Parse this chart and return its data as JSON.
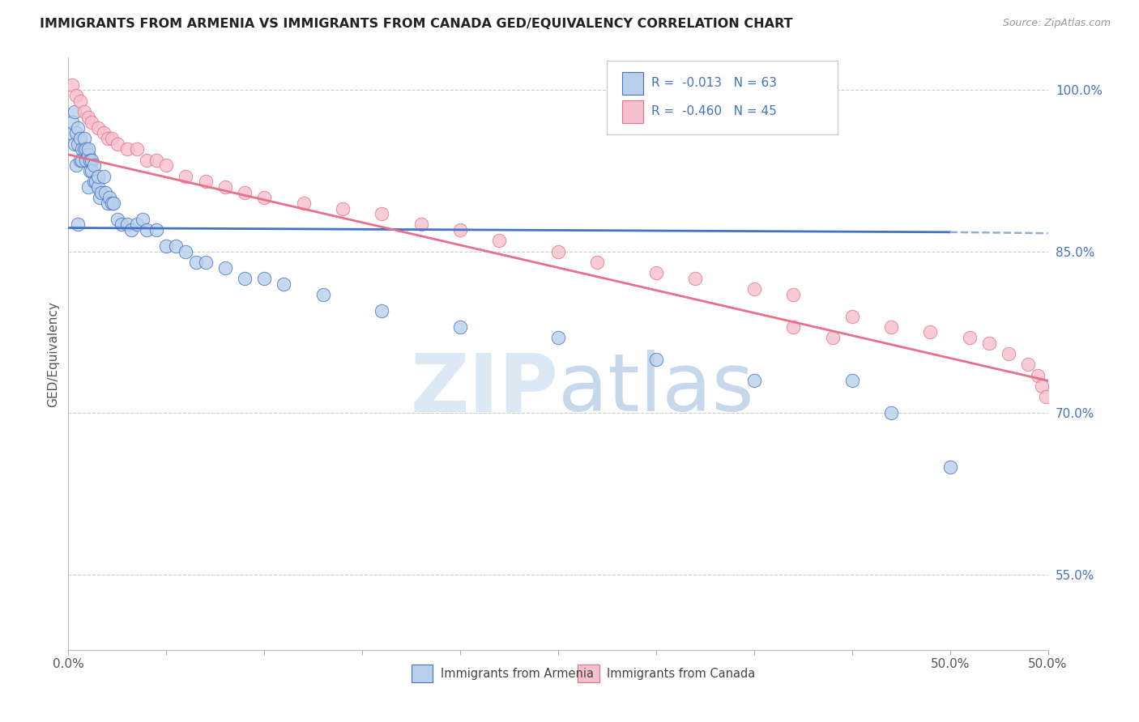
{
  "title": "IMMIGRANTS FROM ARMENIA VS IMMIGRANTS FROM CANADA GED/EQUIVALENCY CORRELATION CHART",
  "source_text": "Source: ZipAtlas.com",
  "ylabel": "GED/Equivalency",
  "legend_label_1": "Immigrants from Armenia",
  "legend_label_2": "Immigrants from Canada",
  "r1": "-0.013",
  "n1": "63",
  "r2": "-0.460",
  "n2": "45",
  "xlim": [
    0.0,
    0.5
  ],
  "ylim": [
    0.48,
    1.03
  ],
  "xtick_positions": [
    0.0,
    0.05,
    0.1,
    0.15,
    0.2,
    0.25,
    0.3,
    0.35,
    0.4,
    0.45,
    0.5
  ],
  "xtick_labels_show": {
    "0.0": "0.0%",
    "0.5": "50.0%"
  },
  "yticks_right": [
    0.55,
    0.7,
    0.85,
    1.0
  ],
  "yticklabels_right": [
    "55.0%",
    "70.0%",
    "85.0%",
    "100.0%"
  ],
  "color_armenia": "#b8d0ea",
  "color_canada": "#f5c0ce",
  "color_line_armenia": "#4472c4",
  "color_line_canada": "#e8708a",
  "color_dashed": "#90aed0",
  "watermark_color": "#dde8f5",
  "armenia_x": [
    0.001,
    0.002,
    0.003,
    0.003,
    0.004,
    0.004,
    0.005,
    0.005,
    0.006,
    0.006,
    0.007,
    0.007,
    0.008,
    0.008,
    0.009,
    0.009,
    0.01,
    0.01,
    0.01,
    0.011,
    0.011,
    0.012,
    0.012,
    0.013,
    0.013,
    0.014,
    0.015,
    0.015,
    0.016,
    0.017,
    0.018,
    0.019,
    0.02,
    0.021,
    0.022,
    0.023,
    0.025,
    0.027,
    0.03,
    0.032,
    0.035,
    0.038,
    0.04,
    0.045,
    0.05,
    0.055,
    0.06,
    0.065,
    0.07,
    0.08,
    0.09,
    0.1,
    0.11,
    0.13,
    0.16,
    0.2,
    0.25,
    0.3,
    0.35,
    0.4,
    0.42,
    0.45,
    0.005
  ],
  "armenia_y": [
    0.96,
    0.97,
    0.98,
    0.95,
    0.96,
    0.93,
    0.95,
    0.965,
    0.935,
    0.955,
    0.935,
    0.945,
    0.945,
    0.955,
    0.935,
    0.945,
    0.94,
    0.91,
    0.945,
    0.935,
    0.925,
    0.935,
    0.925,
    0.93,
    0.915,
    0.915,
    0.91,
    0.92,
    0.9,
    0.905,
    0.92,
    0.905,
    0.895,
    0.9,
    0.895,
    0.895,
    0.88,
    0.875,
    0.875,
    0.87,
    0.875,
    0.88,
    0.87,
    0.87,
    0.855,
    0.855,
    0.85,
    0.84,
    0.84,
    0.835,
    0.825,
    0.825,
    0.82,
    0.81,
    0.795,
    0.78,
    0.77,
    0.75,
    0.73,
    0.73,
    0.7,
    0.65,
    0.875
  ],
  "canada_x": [
    0.002,
    0.004,
    0.006,
    0.008,
    0.01,
    0.012,
    0.015,
    0.018,
    0.02,
    0.022,
    0.025,
    0.03,
    0.035,
    0.04,
    0.045,
    0.05,
    0.06,
    0.07,
    0.08,
    0.09,
    0.1,
    0.12,
    0.14,
    0.16,
    0.18,
    0.2,
    0.22,
    0.25,
    0.27,
    0.3,
    0.32,
    0.35,
    0.37,
    0.4,
    0.42,
    0.44,
    0.46,
    0.47,
    0.48,
    0.49,
    0.495,
    0.497,
    0.499,
    0.37,
    0.39
  ],
  "canada_y": [
    1.005,
    0.995,
    0.99,
    0.98,
    0.975,
    0.97,
    0.965,
    0.96,
    0.955,
    0.955,
    0.95,
    0.945,
    0.945,
    0.935,
    0.935,
    0.93,
    0.92,
    0.915,
    0.91,
    0.905,
    0.9,
    0.895,
    0.89,
    0.885,
    0.875,
    0.87,
    0.86,
    0.85,
    0.84,
    0.83,
    0.825,
    0.815,
    0.81,
    0.79,
    0.78,
    0.775,
    0.77,
    0.765,
    0.755,
    0.745,
    0.735,
    0.725,
    0.715,
    0.78,
    0.77
  ],
  "grid_yticks": [
    0.55,
    0.7,
    0.85,
    1.0
  ],
  "trendline_armenia_x0": 0.0,
  "trendline_armenia_x1": 0.45,
  "trendline_armenia_y0": 0.872,
  "trendline_armenia_y1": 0.868,
  "trendline_dashed_x0": 0.45,
  "trendline_dashed_x1": 0.5,
  "trendline_dashed_y0": 0.868,
  "trendline_dashed_y1": 0.867,
  "trendline_canada_x0": 0.0,
  "trendline_canada_x1": 0.5,
  "trendline_canada_y0": 0.94,
  "trendline_canada_y1": 0.73
}
